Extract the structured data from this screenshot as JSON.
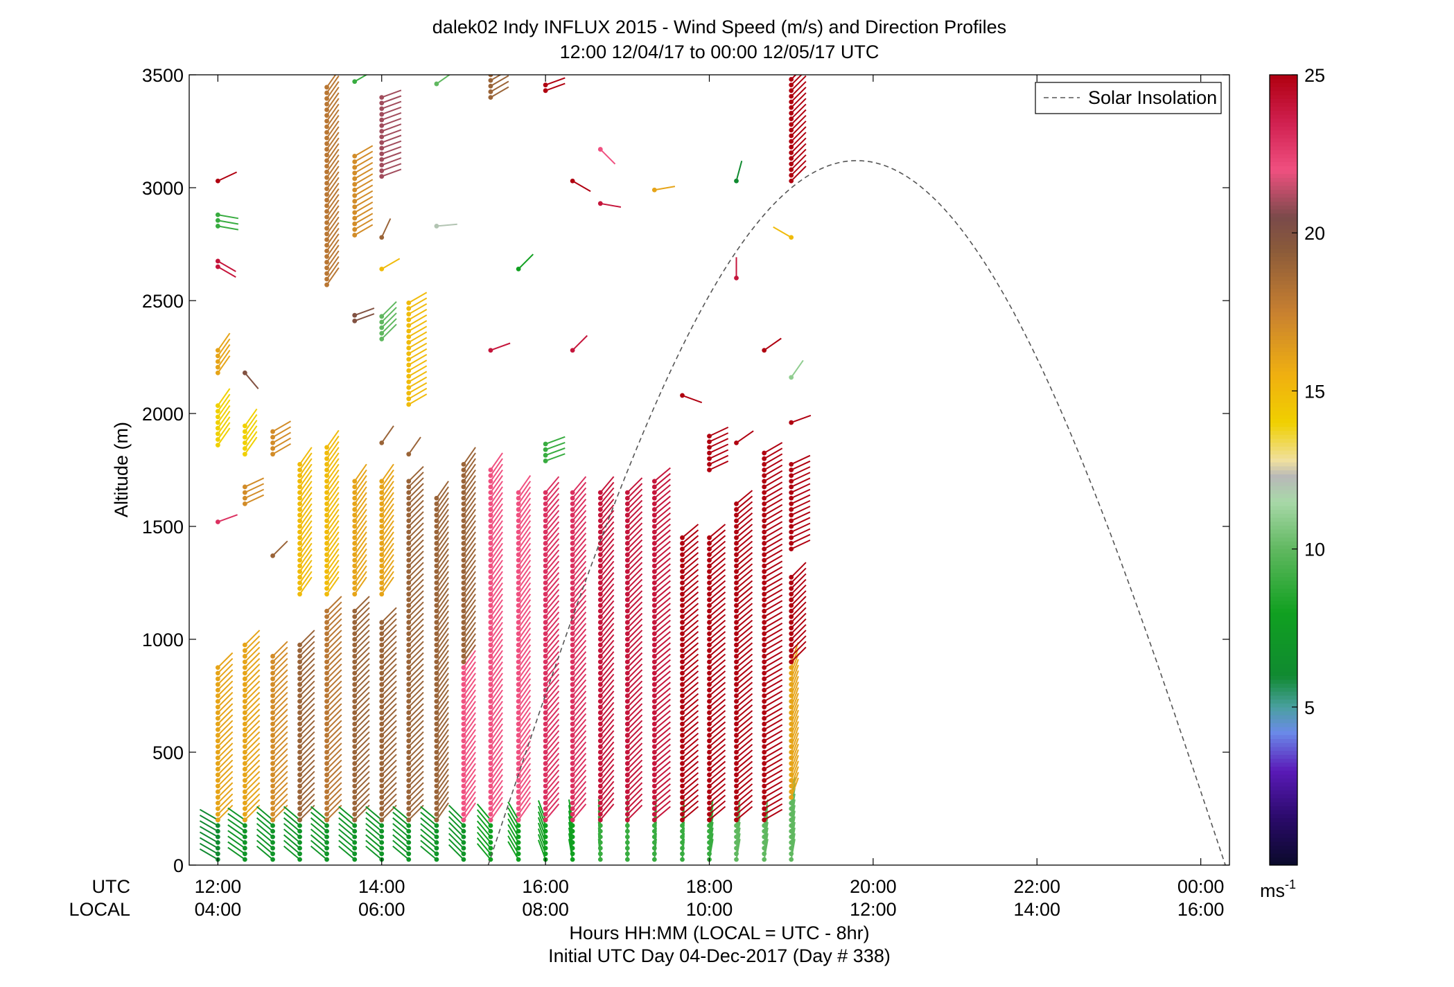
{
  "chart_data": {
    "type": "scatter",
    "title": "dalek02 Indy INFLUX 2015 - Wind Speed (m/s) and Direction Profiles",
    "subtitle": "12:00 12/04/17 to 00:00 12/05/17  UTC",
    "ylabel": "Altitude (m)",
    "xlabel": "Hours HH:MM  (LOCAL = UTC - 8hr)",
    "xlabel2": "Initial UTC Day 04-Dec-2017 (Day # 338)",
    "ylim": [
      0,
      3500
    ],
    "xlim": [
      11.65,
      24.35
    ],
    "y_ticks": [
      0,
      500,
      1000,
      1500,
      2000,
      2500,
      3000,
      3500
    ],
    "x_ticks": [
      {
        "x": 12,
        "utc": "12:00",
        "local": "04:00"
      },
      {
        "x": 14,
        "utc": "14:00",
        "local": "06:00"
      },
      {
        "x": 16,
        "utc": "16:00",
        "local": "08:00"
      },
      {
        "x": 18,
        "utc": "18:00",
        "local": "10:00"
      },
      {
        "x": 20,
        "utc": "20:00",
        "local": "12:00"
      },
      {
        "x": 22,
        "utc": "22:00",
        "local": "14:00"
      },
      {
        "x": 24,
        "utc": "00:00",
        "local": "16:00"
      }
    ],
    "row_label_utc": "UTC",
    "row_label_local": "LOCAL",
    "legend": {
      "label": "Solar Insolation",
      "position": "top-right"
    },
    "colorbar": {
      "min": 0,
      "max": 25,
      "ticks": [
        5,
        10,
        15,
        20,
        25
      ],
      "unit": "ms",
      "unit_sup": "-1"
    },
    "solar_insolation": {
      "sunrise": 15.3,
      "sunset": 24.3,
      "peak_x": 19.8,
      "peak_altitude": 3120
    },
    "profile_times": [
      12.0,
      12.33,
      12.67,
      13.0,
      13.33,
      13.67,
      14.0,
      14.33,
      14.67,
      15.0,
      15.33,
      15.67,
      16.0,
      16.33,
      16.67,
      17.0,
      17.33,
      17.67,
      18.0,
      18.33,
      18.67,
      19.0
    ],
    "series": [
      {
        "kind": "wind_profile",
        "profiles": [
          {
            "t": 12.0,
            "segments": [
              [
                25,
                200,
                6,
                120
              ],
              [
                200,
                880,
                16,
                225
              ],
              [
                1520,
                1520,
                23,
                250
              ],
              [
                1860,
                2050,
                14,
                215
              ],
              [
                2180,
                2280,
                16,
                215
              ],
              [
                2650,
                2690,
                24,
                300
              ],
              [
                2830,
                2880,
                9,
                280
              ],
              [
                3030,
                3030,
                25,
                245
              ]
            ]
          },
          {
            "t": 12.33,
            "segments": [
              [
                25,
                200,
                7,
                125
              ],
              [
                200,
                990,
                16,
                225
              ],
              [
                1600,
                1690,
                17,
                245
              ],
              [
                1820,
                1960,
                14,
                215
              ],
              [
                2180,
                2180,
                20,
                320
              ]
            ]
          },
          {
            "t": 12.67,
            "segments": [
              [
                25,
                200,
                7,
                130
              ],
              [
                200,
                940,
                17,
                225
              ],
              [
                1370,
                1370,
                19,
                225
              ],
              [
                1820,
                1920,
                17,
                240
              ]
            ]
          },
          {
            "t": 13.0,
            "segments": [
              [
                25,
                200,
                7,
                130
              ],
              [
                200,
                990,
                19,
                225
              ],
              [
                1200,
                1790,
                15,
                215
              ]
            ]
          },
          {
            "t": 13.33,
            "segments": [
              [
                25,
                200,
                7,
                130
              ],
              [
                200,
                1130,
                18,
                225
              ],
              [
                1200,
                1870,
                15,
                215
              ],
              [
                2570,
                3460,
                18,
                215
              ]
            ]
          },
          {
            "t": 13.67,
            "segments": [
              [
                25,
                200,
                7,
                130
              ],
              [
                200,
                1130,
                19,
                225
              ],
              [
                1200,
                1700,
                16,
                215
              ],
              [
                2410,
                2450,
                20,
                250
              ],
              [
                2790,
                3160,
                17,
                240
              ],
              [
                3470,
                3470,
                9,
                240
              ]
            ]
          },
          {
            "t": 14.0,
            "segments": [
              [
                25,
                200,
                7,
                130
              ],
              [
                200,
                1090,
                19,
                225
              ],
              [
                1200,
                1700,
                16,
                215
              ],
              [
                1870,
                1870,
                19,
                215
              ],
              [
                2330,
                2430,
                10,
                225
              ],
              [
                2640,
                2640,
                15,
                240
              ],
              [
                2780,
                2780,
                19,
                205
              ],
              [
                3050,
                3420,
                21,
                250
              ]
            ]
          },
          {
            "t": 14.33,
            "segments": [
              [
                25,
                200,
                7,
                130
              ],
              [
                200,
                1700,
                19,
                225
              ],
              [
                1820,
                1820,
                19,
                215
              ],
              [
                2040,
                2510,
                15,
                240
              ]
            ]
          },
          {
            "t": 14.67,
            "segments": [
              [
                25,
                200,
                7,
                130
              ],
              [
                200,
                1640,
                19,
                215
              ],
              [
                2830,
                2830,
                12,
                265
              ],
              [
                3460,
                3460,
                10,
                235
              ]
            ]
          },
          {
            "t": 15.0,
            "segments": [
              [
                25,
                200,
                7,
                135
              ],
              [
                200,
                900,
                22,
                215
              ],
              [
                900,
                1790,
                19,
                215
              ]
            ]
          },
          {
            "t": 15.33,
            "segments": [
              [
                25,
                200,
                8,
                140
              ],
              [
                200,
                1750,
                22,
                215
              ],
              [
                2280,
                2280,
                24,
                250
              ],
              [
                3400,
                3500,
                19,
                240
              ]
            ]
          },
          {
            "t": 15.67,
            "segments": [
              [
                25,
                200,
                8,
                150
              ],
              [
                200,
                1650,
                22,
                215
              ],
              [
                2640,
                2640,
                8,
                225
              ]
            ]
          },
          {
            "t": 16.0,
            "segments": [
              [
                25,
                200,
                8,
                160
              ],
              [
                200,
                1650,
                23,
                220
              ],
              [
                1790,
                1870,
                9,
                250
              ],
              [
                3430,
                3470,
                25,
                250
              ]
            ]
          },
          {
            "t": 16.33,
            "segments": [
              [
                25,
                200,
                8,
                170
              ],
              [
                200,
                1650,
                23,
                220
              ],
              [
                2280,
                2280,
                24,
                225
              ],
              [
                3030,
                3030,
                25,
                300
              ]
            ]
          },
          {
            "t": 16.67,
            "segments": [
              [
                25,
                200,
                9,
                175
              ],
              [
                200,
                1650,
                24,
                220
              ],
              [
                2930,
                2930,
                24,
                280
              ],
              [
                3170,
                3170,
                22,
                315
              ]
            ]
          },
          {
            "t": 17.0,
            "segments": [
              [
                25,
                200,
                9,
                180
              ],
              [
                200,
                1650,
                24,
                225
              ]
            ]
          },
          {
            "t": 17.33,
            "segments": [
              [
                25,
                200,
                9,
                185
              ],
              [
                200,
                1700,
                24,
                230
              ],
              [
                2990,
                2990,
                16,
                260
              ]
            ]
          },
          {
            "t": 17.67,
            "segments": [
              [
                25,
                200,
                9,
                185
              ],
              [
                200,
                1460,
                25,
                230
              ],
              [
                2080,
                2080,
                25,
                290
              ]
            ]
          },
          {
            "t": 18.0,
            "segments": [
              [
                25,
                200,
                9,
                190
              ],
              [
                200,
                1460,
                25,
                230
              ],
              [
                1750,
                1920,
                25,
                245
              ]
            ]
          },
          {
            "t": 18.33,
            "segments": [
              [
                25,
                200,
                10,
                190
              ],
              [
                200,
                1600,
                25,
                230
              ],
              [
                1870,
                1870,
                25,
                235
              ],
              [
                2600,
                2600,
                24,
                180
              ],
              [
                3030,
                3030,
                6,
                195
              ]
            ]
          },
          {
            "t": 18.67,
            "segments": [
              [
                25,
                200,
                10,
                190
              ],
              [
                200,
                1840,
                25,
                240
              ],
              [
                2280,
                2280,
                25,
                235
              ]
            ]
          },
          {
            "t": 19.0,
            "segments": [
              [
                25,
                300,
                10,
                190
              ],
              [
                300,
                900,
                16,
                200
              ],
              [
                900,
                1290,
                25,
                225
              ],
              [
                1400,
                1790,
                25,
                245
              ],
              [
                1960,
                1960,
                25,
                250
              ],
              [
                2160,
                2160,
                11,
                215
              ],
              [
                2780,
                2780,
                15,
                120
              ],
              [
                3030,
                3480,
                25,
                225
              ]
            ]
          }
        ]
      }
    ]
  }
}
